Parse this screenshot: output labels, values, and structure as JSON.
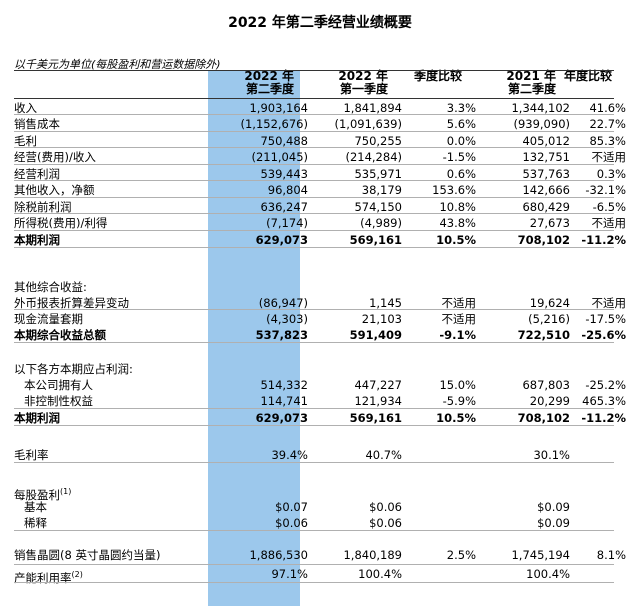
{
  "title": "2022 年第二季经营业绩概要",
  "unit_note": "以千美元为单位(每股盈利和营运数据除外)",
  "headers": {
    "c1": [
      "2022 年",
      "第二季度"
    ],
    "c2": [
      "2022 年",
      "第一季度"
    ],
    "c3": [
      "季度比较",
      ""
    ],
    "c4": [
      "2021 年",
      "第二季度"
    ],
    "c5": [
      "年度比较",
      ""
    ]
  },
  "rows": [
    {
      "label": "收入",
      "v": [
        "1,903,164",
        "1,841,894",
        "3.3%",
        "1,344,102",
        "41.6%"
      ]
    },
    {
      "label": "销售成本",
      "v": [
        "(1,152,676)",
        "(1,091,639)",
        "5.6%",
        "(939,090)",
        "22.7%"
      ]
    },
    {
      "label": "毛利",
      "v": [
        "750,488",
        "750,255",
        "0.0%",
        "405,012",
        "85.3%"
      ]
    },
    {
      "label": "经营(费用)/收入",
      "v": [
        "(211,045)",
        "(214,284)",
        "-1.5%",
        "132,751",
        "不适用"
      ]
    },
    {
      "label": "经营利润",
      "v": [
        "539,443",
        "535,971",
        "0.6%",
        "537,763",
        "0.3%"
      ]
    },
    {
      "label": "其他收入，净额",
      "v": [
        "96,804",
        "38,179",
        "153.6%",
        "142,666",
        "-32.1%"
      ]
    },
    {
      "label": "除税前利润",
      "v": [
        "636,247",
        "574,150",
        "10.8%",
        "680,429",
        "-6.5%"
      ]
    },
    {
      "label": "所得税(费用)/利得",
      "v": [
        "(7,174)",
        "(4,989)",
        "43.8%",
        "27,673",
        "不适用"
      ]
    },
    {
      "label": "本期利润",
      "v": [
        "629,073",
        "569,161",
        "10.5%",
        "708,102",
        "-11.2%"
      ],
      "bold": true
    },
    {
      "label": "其他综合收益:",
      "v": [
        "",
        "",
        "",
        "",
        ""
      ]
    },
    {
      "label": "外币报表折算差异变动",
      "v": [
        "(86,947)",
        "1,145",
        "不适用",
        "19,624",
        "不适用"
      ]
    },
    {
      "label": "现金流量套期",
      "v": [
        "(4,303)",
        "21,103",
        "不适用",
        "(5,216)",
        "-17.5%"
      ]
    },
    {
      "label": "本期综合收益总额",
      "v": [
        "537,823",
        "591,409",
        "-9.1%",
        "722,510",
        "-25.6%"
      ],
      "bold": true
    },
    {
      "label": "以下各方本期应占利润:",
      "v": [
        "",
        "",
        "",
        "",
        ""
      ]
    },
    {
      "label": "本公司拥有人",
      "v": [
        "514,332",
        "447,227",
        "15.0%",
        "687,803",
        "-25.2%"
      ],
      "indent": true
    },
    {
      "label": "非控制性权益",
      "v": [
        "114,741",
        "121,934",
        "-5.9%",
        "20,299",
        "465.3%"
      ],
      "indent": true
    },
    {
      "label": "本期利润",
      "v": [
        "629,073",
        "569,161",
        "10.5%",
        "708,102",
        "-11.2%"
      ],
      "bold": true
    },
    {
      "label": "毛利率",
      "v": [
        "39.4%",
        "40.7%",
        "",
        "30.1%",
        ""
      ]
    },
    {
      "label": "每股盈利",
      "sup": "(1)",
      "v": [
        "",
        "",
        "",
        "",
        ""
      ]
    },
    {
      "label": "基本",
      "v": [
        "$0.07",
        "$0.06",
        "",
        "$0.09",
        ""
      ],
      "indent": true
    },
    {
      "label": "稀释",
      "v": [
        "$0.06",
        "$0.06",
        "",
        "$0.09",
        ""
      ],
      "indent": true
    },
    {
      "label": "销售晶圆(8 英寸晶圆约当量)",
      "v": [
        "1,886,530",
        "1,840,189",
        "2.5%",
        "1,745,194",
        "8.1%"
      ]
    },
    {
      "label": "产能利用率",
      "sup": "(2)",
      "v": [
        "97.1%",
        "100.4%",
        "",
        "100.4%",
        ""
      ]
    }
  ]
}
